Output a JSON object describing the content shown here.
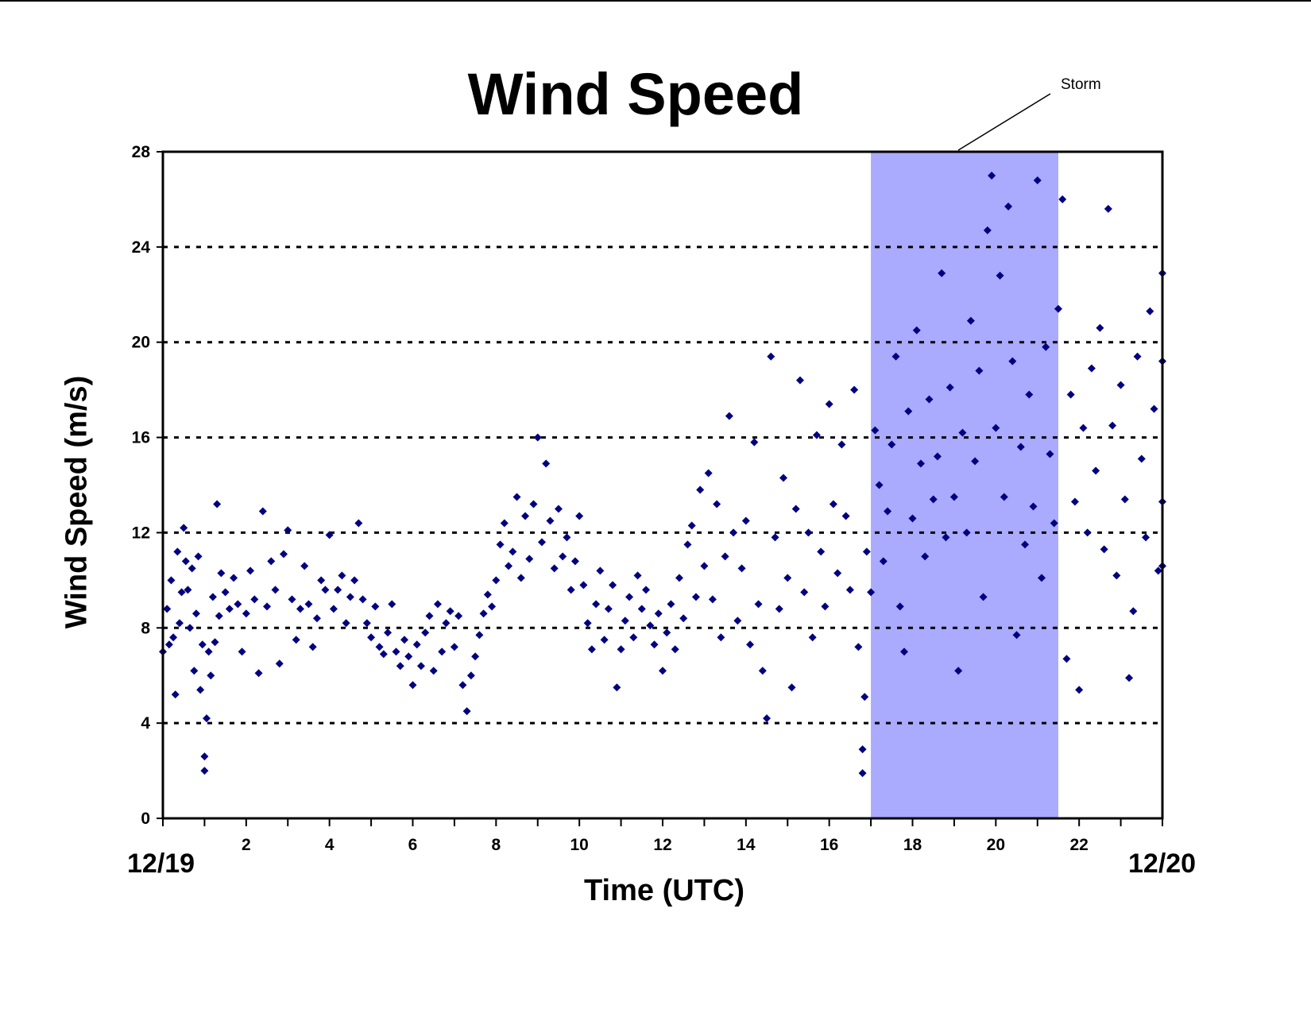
{
  "chart_data": {
    "type": "scatter",
    "title": "Wind Speed",
    "xlabel": "Time (UTC)",
    "ylabel": "Wind Speed (m/s)",
    "xlim": [
      0,
      24
    ],
    "ylim": [
      0,
      28
    ],
    "x_ticks": [
      2,
      4,
      6,
      8,
      10,
      12,
      14,
      16,
      18,
      20,
      22
    ],
    "y_ticks": [
      0,
      4,
      8,
      12,
      16,
      20,
      24,
      28
    ],
    "start_date_label": "12/19",
    "end_date_label": "12/20",
    "grid": "horizontal dotted",
    "marker": "diamond",
    "series_color": "#000080",
    "shaded_region": {
      "label": "Storm",
      "x_start": 17.0,
      "x_end": 21.5,
      "color": "#aaaaff"
    },
    "series": [
      {
        "values": [
          [
            0.0,
            7.0
          ],
          [
            0.1,
            8.8
          ],
          [
            0.15,
            7.3
          ],
          [
            0.2,
            10.0
          ],
          [
            0.25,
            7.6
          ],
          [
            0.3,
            5.2
          ],
          [
            0.35,
            11.2
          ],
          [
            0.4,
            8.2
          ],
          [
            0.45,
            9.5
          ],
          [
            0.5,
            12.2
          ],
          [
            0.55,
            10.8
          ],
          [
            0.6,
            9.6
          ],
          [
            0.65,
            8.0
          ],
          [
            0.7,
            10.5
          ],
          [
            0.75,
            6.2
          ],
          [
            0.8,
            8.6
          ],
          [
            0.85,
            11.0
          ],
          [
            0.9,
            5.4
          ],
          [
            0.95,
            7.3
          ],
          [
            1.0,
            2.6
          ],
          [
            1.0,
            2.0
          ],
          [
            1.05,
            4.2
          ],
          [
            1.1,
            7.0
          ],
          [
            1.15,
            6.0
          ],
          [
            1.2,
            9.3
          ],
          [
            1.25,
            7.4
          ],
          [
            1.3,
            13.2
          ],
          [
            1.35,
            8.5
          ],
          [
            1.4,
            10.3
          ],
          [
            1.5,
            9.5
          ],
          [
            1.6,
            8.8
          ],
          [
            1.7,
            10.1
          ],
          [
            1.8,
            9.0
          ],
          [
            1.9,
            7.0
          ],
          [
            2.0,
            8.6
          ],
          [
            2.1,
            10.4
          ],
          [
            2.2,
            9.2
          ],
          [
            2.3,
            6.1
          ],
          [
            2.4,
            12.9
          ],
          [
            2.5,
            8.9
          ],
          [
            2.6,
            10.8
          ],
          [
            2.7,
            9.6
          ],
          [
            2.8,
            6.5
          ],
          [
            2.9,
            11.1
          ],
          [
            3.0,
            12.1
          ],
          [
            3.1,
            9.2
          ],
          [
            3.2,
            7.5
          ],
          [
            3.3,
            8.8
          ],
          [
            3.4,
            10.6
          ],
          [
            3.5,
            9.0
          ],
          [
            3.6,
            7.2
          ],
          [
            3.7,
            8.4
          ],
          [
            3.8,
            10.0
          ],
          [
            3.9,
            9.6
          ],
          [
            4.0,
            11.9
          ],
          [
            4.1,
            8.8
          ],
          [
            4.2,
            9.6
          ],
          [
            4.3,
            10.2
          ],
          [
            4.4,
            8.2
          ],
          [
            4.5,
            9.3
          ],
          [
            4.6,
            10.0
          ],
          [
            4.7,
            12.4
          ],
          [
            4.8,
            9.2
          ],
          [
            4.9,
            8.2
          ],
          [
            5.0,
            7.6
          ],
          [
            5.1,
            8.9
          ],
          [
            5.2,
            7.2
          ],
          [
            5.3,
            6.9
          ],
          [
            5.4,
            7.8
          ],
          [
            5.5,
            9.0
          ],
          [
            5.6,
            7.0
          ],
          [
            5.7,
            6.4
          ],
          [
            5.8,
            7.5
          ],
          [
            5.9,
            6.8
          ],
          [
            6.0,
            5.6
          ],
          [
            6.1,
            7.3
          ],
          [
            6.2,
            6.4
          ],
          [
            6.3,
            7.8
          ],
          [
            6.4,
            8.5
          ],
          [
            6.5,
            6.2
          ],
          [
            6.6,
            9.0
          ],
          [
            6.7,
            7.0
          ],
          [
            6.8,
            8.2
          ],
          [
            6.9,
            8.7
          ],
          [
            7.0,
            7.2
          ],
          [
            7.1,
            8.5
          ],
          [
            7.2,
            5.6
          ],
          [
            7.3,
            4.5
          ],
          [
            7.4,
            6.0
          ],
          [
            7.5,
            6.8
          ],
          [
            7.6,
            7.7
          ],
          [
            7.7,
            8.6
          ],
          [
            7.8,
            9.4
          ],
          [
            7.9,
            8.9
          ],
          [
            8.0,
            10.0
          ],
          [
            8.1,
            11.5
          ],
          [
            8.2,
            12.4
          ],
          [
            8.3,
            10.6
          ],
          [
            8.4,
            11.2
          ],
          [
            8.5,
            13.5
          ],
          [
            8.6,
            10.1
          ],
          [
            8.7,
            12.7
          ],
          [
            8.8,
            10.9
          ],
          [
            8.9,
            13.2
          ],
          [
            9.0,
            16.0
          ],
          [
            9.1,
            11.6
          ],
          [
            9.2,
            14.9
          ],
          [
            9.3,
            12.5
          ],
          [
            9.4,
            10.5
          ],
          [
            9.5,
            13.0
          ],
          [
            9.6,
            11.0
          ],
          [
            9.7,
            11.8
          ],
          [
            9.8,
            9.6
          ],
          [
            9.9,
            10.8
          ],
          [
            10.0,
            12.7
          ],
          [
            10.1,
            9.8
          ],
          [
            10.2,
            8.2
          ],
          [
            10.3,
            7.1
          ],
          [
            10.4,
            9.0
          ],
          [
            10.5,
            10.4
          ],
          [
            10.6,
            7.5
          ],
          [
            10.7,
            8.8
          ],
          [
            10.8,
            9.8
          ],
          [
            10.9,
            5.5
          ],
          [
            11.0,
            7.1
          ],
          [
            11.1,
            8.3
          ],
          [
            11.2,
            9.3
          ],
          [
            11.3,
            7.6
          ],
          [
            11.4,
            10.2
          ],
          [
            11.5,
            8.8
          ],
          [
            11.6,
            9.6
          ],
          [
            11.7,
            8.1
          ],
          [
            11.8,
            7.3
          ],
          [
            11.9,
            8.6
          ],
          [
            12.0,
            6.2
          ],
          [
            12.1,
            7.8
          ],
          [
            12.2,
            9.0
          ],
          [
            12.3,
            7.1
          ],
          [
            12.4,
            10.1
          ],
          [
            12.5,
            8.4
          ],
          [
            12.6,
            11.5
          ],
          [
            12.7,
            12.3
          ],
          [
            12.8,
            9.3
          ],
          [
            12.9,
            13.8
          ],
          [
            13.0,
            10.6
          ],
          [
            13.1,
            14.5
          ],
          [
            13.2,
            9.2
          ],
          [
            13.3,
            13.2
          ],
          [
            13.4,
            7.6
          ],
          [
            13.5,
            11.0
          ],
          [
            13.6,
            16.9
          ],
          [
            13.7,
            12.0
          ],
          [
            13.8,
            8.3
          ],
          [
            13.9,
            10.5
          ],
          [
            14.0,
            12.5
          ],
          [
            14.1,
            7.3
          ],
          [
            14.2,
            15.8
          ],
          [
            14.3,
            9.0
          ],
          [
            14.4,
            6.2
          ],
          [
            14.5,
            4.2
          ],
          [
            14.6,
            19.4
          ],
          [
            14.7,
            11.8
          ],
          [
            14.8,
            8.8
          ],
          [
            14.9,
            14.3
          ],
          [
            15.0,
            10.1
          ],
          [
            15.1,
            5.5
          ],
          [
            15.2,
            13.0
          ],
          [
            15.3,
            18.4
          ],
          [
            15.4,
            9.5
          ],
          [
            15.5,
            12.0
          ],
          [
            15.6,
            7.6
          ],
          [
            15.7,
            16.1
          ],
          [
            15.8,
            11.2
          ],
          [
            15.9,
            8.9
          ],
          [
            16.0,
            17.4
          ],
          [
            16.1,
            13.2
          ],
          [
            16.2,
            10.3
          ],
          [
            16.3,
            15.7
          ],
          [
            16.4,
            12.7
          ],
          [
            16.5,
            9.6
          ],
          [
            16.6,
            18.0
          ],
          [
            16.7,
            7.2
          ],
          [
            16.8,
            1.9
          ],
          [
            16.8,
            2.9
          ],
          [
            16.85,
            5.1
          ],
          [
            16.9,
            11.2
          ],
          [
            17.0,
            9.5
          ],
          [
            17.1,
            16.3
          ],
          [
            17.2,
            14.0
          ],
          [
            17.3,
            10.8
          ],
          [
            17.4,
            12.9
          ],
          [
            17.5,
            15.7
          ],
          [
            17.6,
            19.4
          ],
          [
            17.7,
            8.9
          ],
          [
            17.8,
            7.0
          ],
          [
            17.9,
            17.1
          ],
          [
            18.0,
            12.6
          ],
          [
            18.1,
            20.5
          ],
          [
            18.2,
            14.9
          ],
          [
            18.3,
            11.0
          ],
          [
            18.4,
            17.6
          ],
          [
            18.5,
            13.4
          ],
          [
            18.6,
            15.2
          ],
          [
            18.7,
            22.9
          ],
          [
            18.8,
            11.8
          ],
          [
            18.9,
            18.1
          ],
          [
            19.0,
            13.5
          ],
          [
            19.1,
            6.2
          ],
          [
            19.2,
            16.2
          ],
          [
            19.3,
            12.0
          ],
          [
            19.4,
            20.9
          ],
          [
            19.5,
            15.0
          ],
          [
            19.6,
            18.8
          ],
          [
            19.7,
            9.3
          ],
          [
            19.8,
            24.7
          ],
          [
            19.9,
            27.0
          ],
          [
            20.0,
            16.4
          ],
          [
            20.1,
            22.8
          ],
          [
            20.2,
            13.5
          ],
          [
            20.3,
            25.7
          ],
          [
            20.4,
            19.2
          ],
          [
            20.5,
            7.7
          ],
          [
            20.6,
            15.6
          ],
          [
            20.7,
            11.5
          ],
          [
            20.8,
            17.8
          ],
          [
            20.9,
            13.1
          ],
          [
            21.0,
            26.8
          ],
          [
            21.1,
            10.1
          ],
          [
            21.2,
            19.8
          ],
          [
            21.3,
            15.3
          ],
          [
            21.4,
            12.4
          ],
          [
            21.5,
            21.4
          ],
          [
            21.6,
            26.0
          ],
          [
            21.7,
            6.7
          ],
          [
            21.8,
            17.8
          ],
          [
            21.9,
            13.3
          ],
          [
            22.0,
            5.4
          ],
          [
            22.1,
            16.4
          ],
          [
            22.2,
            12.0
          ],
          [
            22.3,
            18.9
          ],
          [
            22.4,
            14.6
          ],
          [
            22.5,
            20.6
          ],
          [
            22.6,
            11.3
          ],
          [
            22.7,
            25.6
          ],
          [
            22.8,
            16.5
          ],
          [
            22.9,
            10.2
          ],
          [
            23.0,
            18.2
          ],
          [
            23.1,
            13.4
          ],
          [
            23.2,
            5.9
          ],
          [
            23.3,
            8.7
          ],
          [
            23.4,
            19.4
          ],
          [
            23.5,
            15.1
          ],
          [
            23.6,
            11.8
          ],
          [
            23.7,
            21.3
          ],
          [
            23.8,
            17.2
          ],
          [
            23.9,
            10.4
          ],
          [
            24.0,
            22.9
          ],
          [
            24.0,
            13.3
          ],
          [
            24.0,
            19.2
          ],
          [
            24.0,
            10.6
          ]
        ]
      }
    ]
  }
}
